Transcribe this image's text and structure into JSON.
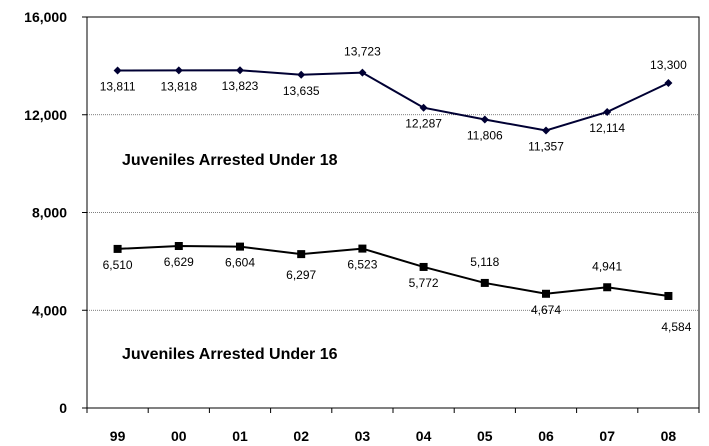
{
  "chart_data": {
    "type": "line",
    "categories": [
      "99",
      "00",
      "01",
      "02",
      "03",
      "04",
      "05",
      "06",
      "07",
      "08"
    ],
    "series": [
      {
        "values": [
          13811,
          13818,
          13823,
          13635,
          13723,
          12287,
          11806,
          11357,
          12114,
          13300
        ],
        "labels": [
          "13,811",
          "13,818",
          "13,823",
          "13,635",
          "13,723",
          "12,287",
          "11,806",
          "11,357",
          "12,114",
          "13,300"
        ],
        "marker": "diamond",
        "color": "#000033"
      },
      {
        "values": [
          6510,
          6629,
          6604,
          6297,
          6523,
          5772,
          5118,
          4674,
          4941,
          4584
        ],
        "labels": [
          "6,510",
          "6,629",
          "6,604",
          "6,297",
          "6,523",
          "5,772",
          "5,118",
          "4,674",
          "4,941",
          "4,584"
        ],
        "marker": "square",
        "color": "#000000"
      }
    ],
    "annotations": [
      "Juveniles Arrested Under 18",
      "Juveniles Arrested Under 16"
    ],
    "yticks": [
      "0",
      "4,000",
      "8,000",
      "12,000",
      "16,000"
    ],
    "ylim": [
      0,
      16000
    ],
    "grid": true
  }
}
